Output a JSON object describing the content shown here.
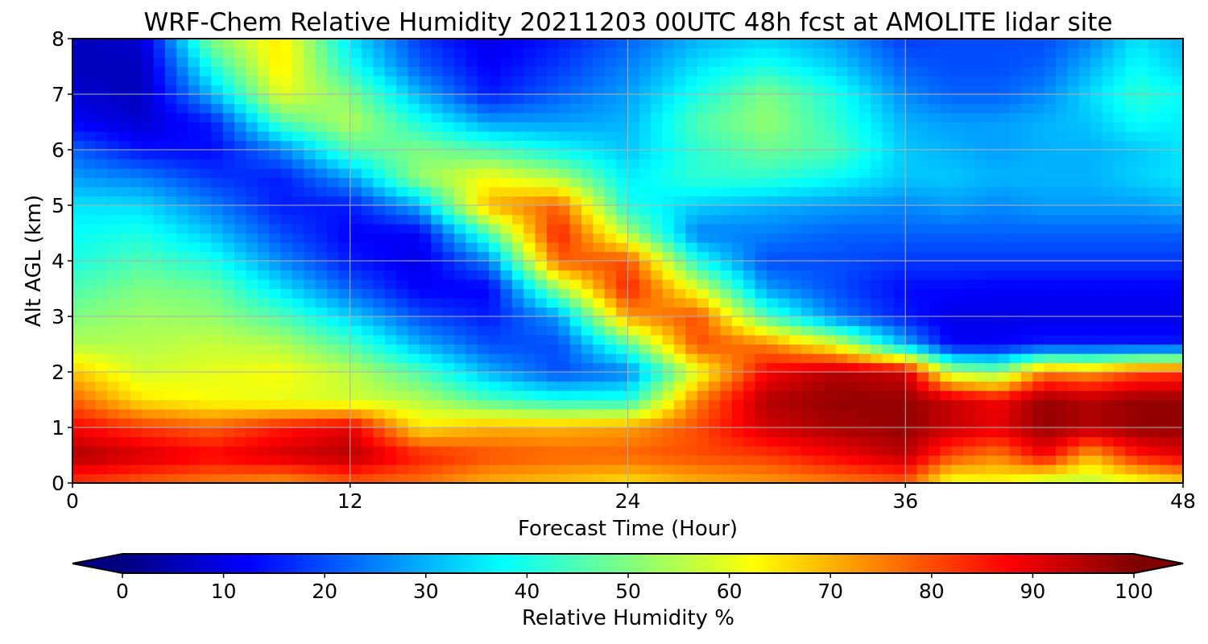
{
  "chart_data": {
    "type": "heatmap",
    "title": "WRF-Chem Relative Humidity 20211203 00UTC 48h fcst at AMOLITE lidar site",
    "xlabel": "Forecast Time (Hour)",
    "ylabel": "Alt AGL (km)",
    "xlim": [
      0,
      48
    ],
    "ylim": [
      0,
      8
    ],
    "xticks": [
      0,
      12,
      24,
      36,
      48
    ],
    "yticks": [
      0,
      1,
      2,
      3,
      4,
      5,
      6,
      7,
      8
    ],
    "grid": true,
    "colormap": "jet",
    "colorbar": {
      "label": "Relative Humidity %",
      "ticks": [
        0,
        10,
        20,
        30,
        40,
        50,
        60,
        70,
        80,
        90,
        100
      ],
      "range": [
        0,
        100
      ],
      "extend": "both",
      "position": "bottom"
    },
    "x": [
      0,
      3,
      6,
      9,
      12,
      15,
      18,
      21,
      24,
      27,
      30,
      33,
      36,
      38,
      40,
      42,
      44,
      46,
      48
    ],
    "y": [
      0,
      0.5,
      1,
      1.5,
      2,
      2.5,
      3,
      3.5,
      4,
      4.5,
      5,
      5.5,
      6,
      6.5,
      7,
      7.5,
      8
    ],
    "z": [
      [
        82,
        78,
        75,
        72,
        78,
        76,
        70,
        68,
        65,
        70,
        72,
        75,
        78,
        60,
        62,
        55,
        55,
        60,
        65
      ],
      [
        96,
        92,
        88,
        92,
        95,
        85,
        80,
        78,
        78,
        80,
        82,
        88,
        94,
        80,
        75,
        88,
        70,
        85,
        90
      ],
      [
        88,
        82,
        78,
        85,
        90,
        65,
        70,
        70,
        72,
        80,
        92,
        96,
        98,
        93,
        90,
        98,
        95,
        98,
        98
      ],
      [
        78,
        65,
        62,
        60,
        58,
        55,
        45,
        40,
        40,
        75,
        95,
        98,
        98,
        93,
        88,
        98,
        95,
        98,
        98
      ],
      [
        68,
        58,
        60,
        62,
        56,
        45,
        30,
        20,
        25,
        60,
        88,
        95,
        92,
        55,
        50,
        75,
        72,
        80,
        82
      ],
      [
        55,
        55,
        57,
        55,
        45,
        30,
        20,
        20,
        45,
        80,
        75,
        60,
        30,
        12,
        12,
        15,
        15,
        15,
        15
      ],
      [
        50,
        53,
        52,
        45,
        33,
        20,
        15,
        28,
        72,
        80,
        45,
        25,
        15,
        10,
        10,
        10,
        10,
        10,
        10
      ],
      [
        45,
        50,
        48,
        35,
        22,
        12,
        12,
        52,
        85,
        60,
        28,
        20,
        13,
        13,
        12,
        12,
        12,
        12,
        12
      ],
      [
        40,
        45,
        40,
        26,
        15,
        10,
        25,
        78,
        80,
        40,
        20,
        20,
        18,
        18,
        18,
        18,
        18,
        18,
        18
      ],
      [
        38,
        40,
        32,
        20,
        12,
        12,
        45,
        85,
        55,
        25,
        25,
        22,
        22,
        22,
        22,
        22,
        22,
        22,
        22
      ],
      [
        35,
        34,
        25,
        15,
        15,
        30,
        70,
        78,
        40,
        33,
        30,
        28,
        26,
        28,
        26,
        28,
        28,
        28,
        30
      ],
      [
        28,
        25,
        18,
        15,
        28,
        52,
        62,
        55,
        36,
        42,
        42,
        38,
        32,
        32,
        30,
        30,
        30,
        33,
        35
      ],
      [
        22,
        14,
        13,
        25,
        45,
        50,
        45,
        38,
        32,
        42,
        48,
        45,
        32,
        30,
        28,
        30,
        30,
        32,
        35
      ],
      [
        12,
        8,
        15,
        45,
        55,
        40,
        28,
        28,
        30,
        45,
        52,
        42,
        30,
        28,
        28,
        30,
        32,
        38,
        36
      ],
      [
        8,
        6,
        30,
        60,
        50,
        30,
        15,
        22,
        28,
        40,
        50,
        40,
        26,
        22,
        22,
        26,
        34,
        42,
        38
      ],
      [
        6,
        6,
        40,
        65,
        40,
        22,
        12,
        18,
        25,
        35,
        40,
        33,
        22,
        20,
        20,
        22,
        30,
        38,
        33
      ],
      [
        6,
        8,
        50,
        65,
        35,
        18,
        10,
        15,
        22,
        30,
        33,
        28,
        18,
        20,
        20,
        20,
        25,
        35,
        30
      ]
    ]
  }
}
